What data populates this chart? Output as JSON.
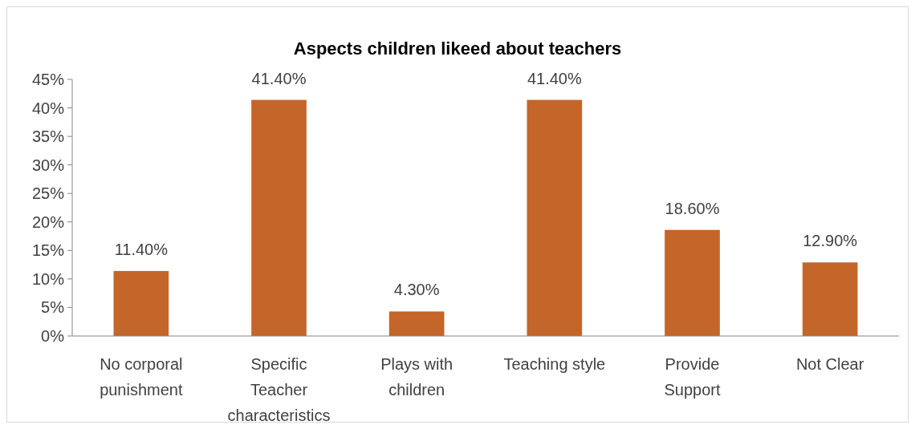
{
  "chart_data": {
    "type": "bar",
    "title": "Aspects children likeed about teachers",
    "categories": [
      "No corporal punishment",
      "Specific Teacher characteristics",
      "Plays with children",
      "Teaching style",
      "Provide Support",
      "Not Clear"
    ],
    "values": [
      11.4,
      41.4,
      4.3,
      41.4,
      18.6,
      12.9
    ],
    "value_labels": [
      "11.40%",
      "41.40%",
      "4.30%",
      "41.40%",
      "18.60%",
      "12.90%"
    ],
    "color": "#c4652a",
    "ylim": [
      0,
      45
    ],
    "yticks": [
      {
        "value": 0,
        "label": "0%"
      },
      {
        "value": 5,
        "label": "5%"
      },
      {
        "value": 10,
        "label": "10%"
      },
      {
        "value": 15,
        "label": "15%"
      },
      {
        "value": 20,
        "label": "20%"
      },
      {
        "value": 25,
        "label": "25%"
      },
      {
        "value": 30,
        "label": "30%"
      },
      {
        "value": 35,
        "label": "35%"
      },
      {
        "value": 40,
        "label": "40%"
      },
      {
        "value": 45,
        "label": "45%"
      }
    ],
    "grid": false
  }
}
